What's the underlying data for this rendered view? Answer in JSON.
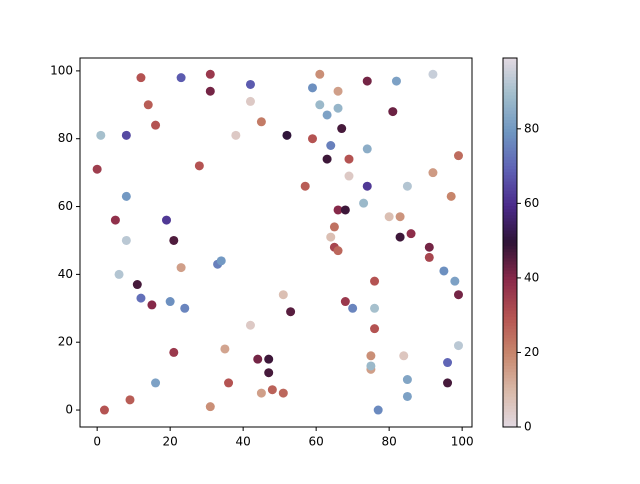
{
  "chart_data": {
    "type": "scatter",
    "x": [
      1,
      0,
      2,
      12,
      14,
      16,
      8,
      8,
      5,
      8,
      6,
      11,
      12,
      15,
      9,
      16,
      23,
      31,
      31,
      28,
      19,
      21,
      23,
      20,
      24,
      21,
      31,
      42,
      42,
      38,
      45,
      52,
      33,
      34,
      42,
      35,
      36,
      44,
      47,
      47,
      45,
      48,
      51,
      51,
      53,
      61,
      59,
      61,
      63,
      66,
      66,
      59,
      64,
      63,
      67,
      69,
      69,
      57,
      66,
      68,
      65,
      64,
      65,
      66,
      68,
      70,
      74,
      74,
      74,
      73,
      76,
      76,
      76,
      75,
      75,
      75,
      77,
      82,
      81,
      80,
      83,
      83,
      86,
      85,
      84,
      85,
      85,
      92,
      92,
      91,
      91,
      95,
      97,
      98,
      99,
      99,
      99,
      96,
      96
    ],
    "y": [
      81,
      71,
      0,
      98,
      90,
      84,
      81,
      63,
      56,
      50,
      40,
      37,
      33,
      31,
      3,
      8,
      98,
      99,
      94,
      72,
      56,
      50,
      42,
      32,
      30,
      17,
      1,
      96,
      91,
      81,
      85,
      81,
      43,
      44,
      25,
      18,
      8,
      15,
      15,
      11,
      5,
      6,
      5,
      34,
      29,
      99,
      95,
      90,
      87,
      89,
      94,
      80,
      78,
      74,
      83,
      74,
      69,
      66,
      59,
      59,
      54,
      51,
      48,
      47,
      32,
      30,
      97,
      77,
      66,
      61,
      38,
      30,
      24,
      16,
      12,
      13,
      0,
      97,
      88,
      57,
      57,
      51,
      52,
      66,
      16,
      9,
      4,
      99,
      70,
      48,
      45,
      41,
      63,
      38,
      34,
      75,
      19,
      14,
      8
    ],
    "c": [
      90,
      35,
      30,
      30,
      28,
      30,
      65,
      80,
      38,
      93,
      92,
      47,
      72,
      40,
      28,
      82,
      68,
      36,
      42,
      30,
      62,
      46,
      15,
      78,
      76,
      36,
      18,
      68,
      5,
      5,
      22,
      50,
      75,
      80,
      5,
      14,
      30,
      42,
      48,
      47,
      15,
      27,
      26,
      8,
      45,
      18,
      78,
      88,
      82,
      87,
      15,
      30,
      75,
      48,
      47,
      30,
      5,
      28,
      40,
      48,
      24,
      8,
      33,
      26,
      36,
      76,
      42,
      85,
      62,
      88,
      30,
      90,
      30,
      18,
      15,
      88,
      77,
      82,
      43,
      8,
      17,
      48,
      39,
      92,
      6,
      83,
      82,
      95,
      16,
      42,
      33,
      78,
      20,
      82,
      42,
      25,
      93,
      70,
      47
    ],
    "xlim": [
      -4.7,
      102.7
    ],
    "ylim": [
      -5,
      103.8
    ],
    "xticks": [
      0,
      20,
      40,
      60,
      80,
      100
    ],
    "yticks": [
      0,
      20,
      40,
      60,
      80,
      100
    ],
    "clim": [
      0,
      99
    ],
    "cticks": [
      0,
      20,
      40,
      60,
      80
    ],
    "colormap": [
      "#e2d9e2",
      "#d9b9a8",
      "#c7866c",
      "#b55452",
      "#8a2a4a",
      "#2f1436",
      "#4a2a8a",
      "#5f62b5",
      "#6f96c2",
      "#a0bdcb",
      "#e2d9e2"
    ]
  }
}
